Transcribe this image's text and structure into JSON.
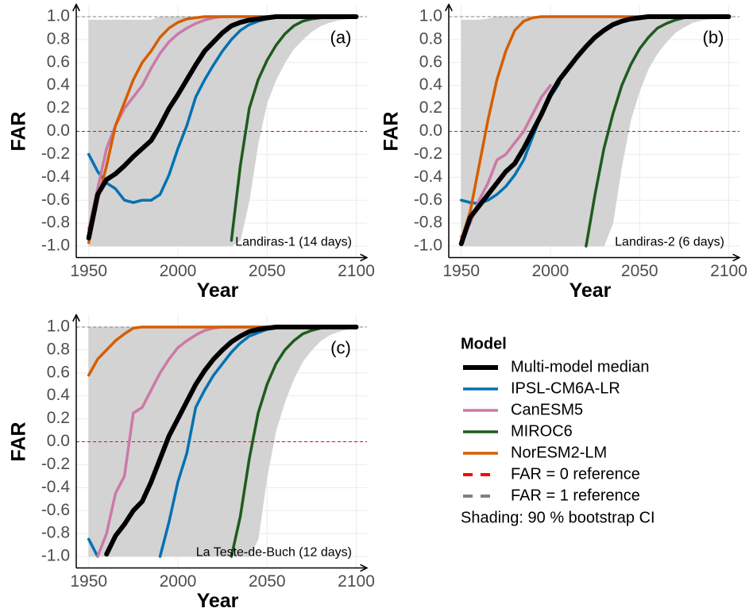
{
  "chart_data": [
    {
      "type": "line",
      "label": "(a)",
      "annotation": "Landiras-1 (14 days)",
      "xlabel": "Year",
      "ylabel": "FAR",
      "grid": true,
      "x": [
        1950,
        1955,
        1960,
        1965,
        1970,
        1975,
        1980,
        1985,
        1990,
        1995,
        2000,
        2005,
        2010,
        2015,
        2020,
        2025,
        2030,
        2035,
        2040,
        2045,
        2050,
        2055,
        2060,
        2065,
        2070,
        2075,
        2080,
        2085,
        2090,
        2095,
        2100
      ],
      "xlim": [
        1943,
        2106
      ],
      "xticks": [
        1950,
        2000,
        2050,
        2100
      ],
      "ylim": [
        -1.1,
        1.1
      ],
      "yticks": [
        {
          "value": 1,
          "label": "1.0"
        },
        0.8,
        0.6,
        0.4,
        0.2,
        {
          "value": 0,
          "label": "0.0"
        },
        -0.2,
        -0.4,
        -0.6,
        -0.8,
        {
          "value": -1,
          "label": "-1.0"
        }
      ],
      "hlines": [
        {
          "value": 0,
          "color": "#ff0000"
        },
        {
          "value": 1,
          "color": "#808080"
        }
      ],
      "ci": {
        "color": "#d3d3d3",
        "lower": [
          -1,
          -1,
          -1,
          -1,
          -1,
          -1,
          -1,
          -1,
          -1,
          -1,
          -1,
          -1,
          -1,
          -1,
          -1,
          -1,
          -1,
          -0.95,
          -0.6,
          -0.1,
          0.25,
          0.45,
          0.6,
          0.72,
          0.8,
          0.87,
          0.92,
          0.95,
          0.97,
          0.98,
          0.99
        ],
        "upper": [
          0.97,
          0.97,
          0.97,
          0.97,
          0.97,
          0.97,
          0.97,
          0.97,
          1,
          1,
          1,
          1,
          1,
          1,
          1,
          1,
          1,
          1,
          1,
          1,
          1,
          1,
          1,
          1,
          1,
          1,
          1,
          1,
          1,
          1,
          1
        ]
      },
      "series": [
        {
          "color": "#000000",
          "values": [
            -0.93,
            -0.55,
            -0.42,
            -0.37,
            -0.3,
            -0.22,
            -0.15,
            -0.08,
            0.05,
            0.2,
            0.32,
            0.45,
            0.58,
            0.7,
            0.78,
            0.86,
            0.92,
            0.95,
            0.97,
            0.98,
            0.99,
            1,
            1,
            1,
            1,
            1,
            1,
            1,
            1,
            1,
            1
          ]
        },
        {
          "color": "#0072b2",
          "values": [
            -0.2,
            -0.35,
            -0.45,
            -0.5,
            -0.6,
            -0.62,
            -0.6,
            -0.6,
            -0.55,
            -0.38,
            -0.15,
            0.05,
            0.3,
            0.45,
            0.58,
            0.7,
            0.8,
            0.88,
            0.93,
            0.96,
            0.98,
            0.99,
            1,
            1,
            1,
            1,
            1,
            1,
            1,
            1,
            1
          ]
        },
        {
          "color": "#cc79a7",
          "values": [
            -0.85,
            -0.5,
            -0.15,
            0.05,
            0.2,
            0.3,
            0.4,
            0.55,
            0.68,
            0.78,
            0.85,
            0.9,
            0.94,
            0.97,
            0.99,
            1,
            1,
            1,
            1,
            1,
            1,
            1,
            1,
            1,
            1,
            1,
            1,
            1,
            1,
            1,
            1
          ]
        },
        {
          "color": "#1e5c1e",
          "values": [
            null,
            null,
            null,
            null,
            null,
            null,
            null,
            null,
            null,
            null,
            null,
            null,
            null,
            null,
            null,
            null,
            -0.95,
            -0.3,
            0.2,
            0.45,
            0.62,
            0.75,
            0.85,
            0.92,
            0.96,
            0.98,
            0.99,
            1,
            1,
            1,
            1
          ]
        },
        {
          "color": "#d55e00",
          "values": [
            -0.97,
            -0.6,
            -0.3,
            0.05,
            0.25,
            0.45,
            0.6,
            0.7,
            0.82,
            0.9,
            0.95,
            0.98,
            0.99,
            1,
            1,
            1,
            1,
            1,
            1,
            1,
            1,
            1,
            1,
            1,
            1,
            1,
            1,
            1,
            1,
            1,
            1
          ]
        }
      ]
    },
    {
      "type": "line",
      "label": "(b)",
      "annotation": "Landiras-2 (6 days)",
      "xlabel": "Year",
      "ylabel": "FAR",
      "grid": true,
      "x": [
        1950,
        1955,
        1960,
        1965,
        1970,
        1975,
        1980,
        1985,
        1990,
        1995,
        2000,
        2005,
        2010,
        2015,
        2020,
        2025,
        2030,
        2035,
        2040,
        2045,
        2050,
        2055,
        2060,
        2065,
        2070,
        2075,
        2080,
        2085,
        2090,
        2095,
        2100
      ],
      "xlim": [
        1943,
        2106
      ],
      "xticks": [
        1950,
        2000,
        2050,
        2100
      ],
      "ylim": [
        -1.1,
        1.1
      ],
      "yticks": [
        {
          "value": 1,
          "label": "1.0"
        },
        0.8,
        0.6,
        0.4,
        0.2,
        {
          "value": 0,
          "label": "0.0"
        },
        -0.2,
        -0.4,
        -0.6,
        -0.8,
        {
          "value": -1,
          "label": "-1.0"
        }
      ],
      "hlines": [
        {
          "value": 0,
          "color": "#ff0000"
        },
        {
          "value": 1,
          "color": "#808080"
        }
      ],
      "ci": {
        "color": "#d3d3d3",
        "lower": [
          -1,
          -1,
          -1,
          -1,
          -1,
          -1,
          -1,
          -1,
          -1,
          -1,
          -1,
          -1,
          -1,
          -1,
          -1,
          -1,
          -1,
          -0.8,
          -0.3,
          0.1,
          0.35,
          0.55,
          0.68,
          0.78,
          0.86,
          0.91,
          0.95,
          0.97,
          0.98,
          0.99,
          1
        ],
        "upper": [
          0.97,
          0.97,
          0.97,
          0.98,
          1,
          1,
          1,
          1,
          1,
          1,
          1,
          1,
          1,
          1,
          1,
          1,
          1,
          1,
          1,
          1,
          1,
          1,
          1,
          1,
          1,
          1,
          1,
          1,
          1,
          1,
          1
        ]
      },
      "series": [
        {
          "color": "#000000",
          "values": [
            -0.98,
            -0.75,
            -0.65,
            -0.55,
            -0.45,
            -0.35,
            -0.28,
            -0.15,
            0,
            0.15,
            0.32,
            0.45,
            0.55,
            0.65,
            0.74,
            0.82,
            0.88,
            0.93,
            0.96,
            0.98,
            0.99,
            1,
            1,
            1,
            1,
            1,
            1,
            1,
            1,
            1,
            1
          ]
        },
        {
          "color": "#0072b2",
          "values": [
            -0.6,
            -0.62,
            -0.63,
            -0.6,
            -0.55,
            -0.48,
            -0.38,
            -0.25,
            -0.05,
            0.15,
            0.3,
            0.42,
            null,
            null,
            null,
            null,
            null,
            null,
            null,
            null,
            null,
            null,
            null,
            null,
            null,
            null,
            null,
            null,
            null,
            null,
            null
          ]
        },
        {
          "color": "#cc79a7",
          "values": [
            -0.92,
            -0.8,
            -0.6,
            -0.45,
            -0.25,
            -0.2,
            -0.1,
            0,
            0.15,
            0.3,
            0.4,
            null,
            null,
            null,
            null,
            null,
            null,
            null,
            null,
            null,
            null,
            null,
            null,
            null,
            null,
            null,
            null,
            null,
            null,
            null,
            null
          ]
        },
        {
          "color": "#1e5c1e",
          "values": [
            null,
            null,
            null,
            null,
            null,
            null,
            null,
            null,
            null,
            null,
            null,
            null,
            null,
            null,
            -1,
            -0.55,
            -0.15,
            0.15,
            0.4,
            0.58,
            0.72,
            0.82,
            0.9,
            0.94,
            0.97,
            0.99,
            1,
            1,
            1,
            1,
            1
          ]
        },
        {
          "color": "#d55e00",
          "values": [
            -0.95,
            -0.7,
            -0.3,
            0.1,
            0.45,
            0.7,
            0.88,
            0.96,
            0.99,
            1,
            1,
            1,
            1,
            1,
            1,
            1,
            1,
            1,
            1,
            1,
            1,
            1,
            1,
            1,
            1,
            1,
            1,
            1,
            1,
            1,
            1
          ]
        }
      ]
    },
    {
      "type": "line",
      "label": "(c)",
      "annotation": "La Teste-de-Buch (12 days)",
      "xlabel": "Year",
      "ylabel": "FAR",
      "grid": true,
      "x": [
        1950,
        1955,
        1960,
        1965,
        1970,
        1975,
        1980,
        1985,
        1990,
        1995,
        2000,
        2005,
        2010,
        2015,
        2020,
        2025,
        2030,
        2035,
        2040,
        2045,
        2050,
        2055,
        2060,
        2065,
        2070,
        2075,
        2080,
        2085,
        2090,
        2095,
        2100
      ],
      "xlim": [
        1943,
        2106
      ],
      "xticks": [
        1950,
        2000,
        2050,
        2100
      ],
      "ylim": [
        -1.1,
        1.1
      ],
      "yticks": [
        {
          "value": 1,
          "label": "1.0"
        },
        0.8,
        0.6,
        0.4,
        0.2,
        {
          "value": 0,
          "label": "0.0"
        },
        -0.2,
        -0.4,
        -0.6,
        -0.8,
        {
          "value": -1,
          "label": "-1.0"
        }
      ],
      "hlines": [
        {
          "value": 0,
          "color": "#ff0000"
        },
        {
          "value": 1,
          "color": "#808080"
        }
      ],
      "ci": {
        "color": "#d3d3d3",
        "lower": [
          -1,
          -1,
          -1,
          -1,
          -1,
          -1,
          -1,
          -1,
          -1,
          -1,
          -1,
          -1,
          -1,
          -1,
          -1,
          -1,
          -1,
          -1,
          -1,
          -0.85,
          -0.3,
          0.1,
          0.35,
          0.55,
          0.7,
          0.8,
          0.88,
          0.93,
          0.96,
          0.98,
          0.99
        ],
        "upper": [
          1,
          1,
          1,
          1,
          1,
          1,
          1,
          1,
          1,
          1,
          1,
          1,
          1,
          1,
          1,
          1,
          1,
          1,
          1,
          1,
          1,
          1,
          1,
          1,
          1,
          1,
          1,
          1,
          1,
          1,
          1
        ]
      },
      "series": [
        {
          "color": "#000000",
          "values": [
            null,
            null,
            -0.98,
            -0.82,
            -0.72,
            -0.6,
            -0.52,
            -0.35,
            -0.15,
            0.05,
            0.2,
            0.35,
            0.5,
            0.62,
            0.72,
            0.8,
            0.87,
            0.92,
            0.96,
            0.98,
            0.99,
            1,
            1,
            1,
            1,
            1,
            1,
            1,
            1,
            1,
            1
          ]
        },
        {
          "color": "#0072b2",
          "values": [
            -0.85,
            -1,
            null,
            null,
            null,
            null,
            null,
            null,
            -1,
            -0.7,
            -0.35,
            -0.1,
            0.3,
            0.45,
            0.58,
            0.68,
            0.78,
            0.86,
            0.92,
            0.95,
            0.98,
            0.99,
            1,
            1,
            1,
            1,
            1,
            1,
            1,
            1,
            1
          ]
        },
        {
          "color": "#cc79a7",
          "values": [
            null,
            -1,
            -0.8,
            -0.45,
            -0.3,
            0.25,
            0.3,
            0.45,
            0.6,
            0.72,
            0.82,
            0.88,
            0.93,
            0.97,
            0.99,
            1,
            1,
            1,
            1,
            1,
            1,
            1,
            1,
            1,
            1,
            1,
            1,
            1,
            1,
            1,
            1
          ]
        },
        {
          "color": "#1e5c1e",
          "values": [
            null,
            null,
            null,
            null,
            null,
            null,
            null,
            null,
            null,
            null,
            null,
            null,
            null,
            null,
            null,
            null,
            -1,
            -0.65,
            -0.15,
            0.25,
            0.5,
            0.68,
            0.8,
            0.88,
            0.94,
            0.97,
            0.99,
            1,
            1,
            1,
            1
          ]
        },
        {
          "color": "#d55e00",
          "values": [
            0.58,
            0.72,
            0.8,
            0.88,
            0.94,
            0.99,
            1,
            1,
            1,
            1,
            1,
            1,
            1,
            1,
            1,
            1,
            1,
            1,
            1,
            1,
            1,
            1,
            1,
            1,
            1,
            1,
            1,
            1,
            1,
            1,
            1
          ]
        }
      ]
    }
  ],
  "legend": {
    "title": "Model",
    "entries": [
      {
        "name": "Multi-model median",
        "color": "#000000"
      },
      {
        "name": "IPSL-CM6A-LR",
        "color": "#0072b2"
      },
      {
        "name": "CanESM5",
        "color": "#cc79a7"
      },
      {
        "name": "MIROC6",
        "color": "#1e5c1e"
      },
      {
        "name": "NorESM2-LM",
        "color": "#d55e00"
      },
      {
        "name": "FAR = 0 reference",
        "color": "#ff0000",
        "dashed": true
      },
      {
        "name": "FAR = 1 reference",
        "color": "#808080",
        "dashed": true
      }
    ],
    "note": "Shading: 90 % bootstrap CI"
  }
}
